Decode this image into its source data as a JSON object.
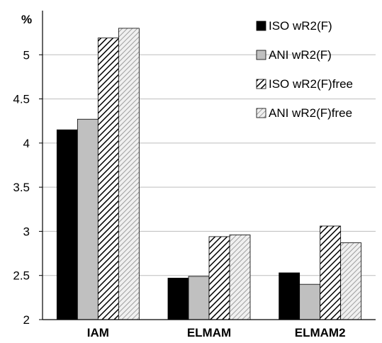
{
  "chart_data": {
    "type": "bar",
    "ylabel": "%",
    "categories": [
      "IAM",
      "ELMAM",
      "ELMAM2"
    ],
    "series": [
      {
        "name": "ISO wR2(F)",
        "values": [
          4.15,
          2.47,
          2.53
        ],
        "fill": "solid-black"
      },
      {
        "name": "ANI wR2(F)",
        "values": [
          4.27,
          2.49,
          2.4
        ],
        "fill": "solid-gray"
      },
      {
        "name": "ISO wR2(F)free",
        "values": [
          5.19,
          2.94,
          3.06
        ],
        "fill": "hatch-dense"
      },
      {
        "name": "ANI wR2(F)free",
        "values": [
          5.3,
          2.96,
          2.87
        ],
        "fill": "hatch-light"
      }
    ],
    "ylim": [
      2,
      5.5
    ],
    "yticks": [
      "2",
      "2.5",
      "3",
      "3.5",
      "4",
      "4.5",
      "5"
    ],
    "grid": true,
    "legend_position": "top-right"
  },
  "colors": {
    "black": "#000000",
    "gray": "#c0c0c0",
    "hatch_dense_bg": "#ffffff",
    "hatch_dense_line": "#000000",
    "hatch_light_bg": "#f0f0f0",
    "hatch_light_line": "#8a8a8a",
    "grid": "#bdbdbd"
  }
}
